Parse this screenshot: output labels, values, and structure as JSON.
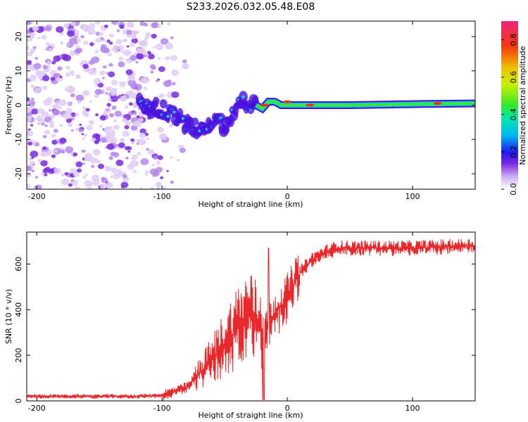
{
  "title": "S233.2026.032.05.48.E08",
  "chart_data": [
    {
      "type": "heatmap",
      "xlabel": "Height of straight line (km)",
      "ylabel": "Frequency (Hz)",
      "xlim": [
        -208,
        150
      ],
      "ylim": [
        -24.5,
        24.5
      ],
      "xticks": [
        -200,
        -100,
        0,
        100
      ],
      "yticks": [
        -20,
        -10,
        0,
        10,
        20
      ],
      "signal_centerline": {
        "x": [
          -118,
          -110,
          -100,
          -90,
          -80,
          -70,
          -62,
          -55,
          -50,
          -45,
          -40,
          -35,
          -30,
          -25,
          -20,
          -15,
          -10,
          -5,
          0,
          20,
          50,
          100,
          150
        ],
        "y": [
          0,
          0,
          -1,
          -3,
          -6,
          -7,
          -5,
          -3,
          -7,
          -4,
          -1,
          1,
          0,
          0,
          -1,
          1,
          1,
          0,
          0,
          0,
          0,
          0.3,
          0.5
        ]
      },
      "colorbar": {
        "label": "Normalized spectral amplitude",
        "range": [
          0.0,
          0.9
        ],
        "ticks": [
          0.0,
          0.2,
          0.4,
          0.6,
          0.8
        ]
      }
    },
    {
      "type": "line",
      "xlabel": "Height of straight line (km)",
      "ylabel": "SNR (10 * v/v)",
      "xlim": [
        -208,
        150
      ],
      "ylim": [
        0,
        740
      ],
      "xticks": [
        -200,
        -100,
        0,
        100
      ],
      "yticks": [
        0,
        200,
        400,
        600
      ],
      "color": "#e8282a",
      "trend": {
        "x": [
          -208,
          -120,
          -100,
          -90,
          -80,
          -70,
          -60,
          -50,
          -40,
          -30,
          -20,
          -10,
          0,
          10,
          20,
          30,
          40,
          60,
          100,
          150
        ],
        "y": [
          20,
          20,
          25,
          40,
          60,
          120,
          180,
          250,
          320,
          370,
          300,
          380,
          450,
          560,
          620,
          650,
          670,
          670,
          670,
          680
        ]
      },
      "peak": {
        "x": -15,
        "y": 670
      }
    }
  ]
}
